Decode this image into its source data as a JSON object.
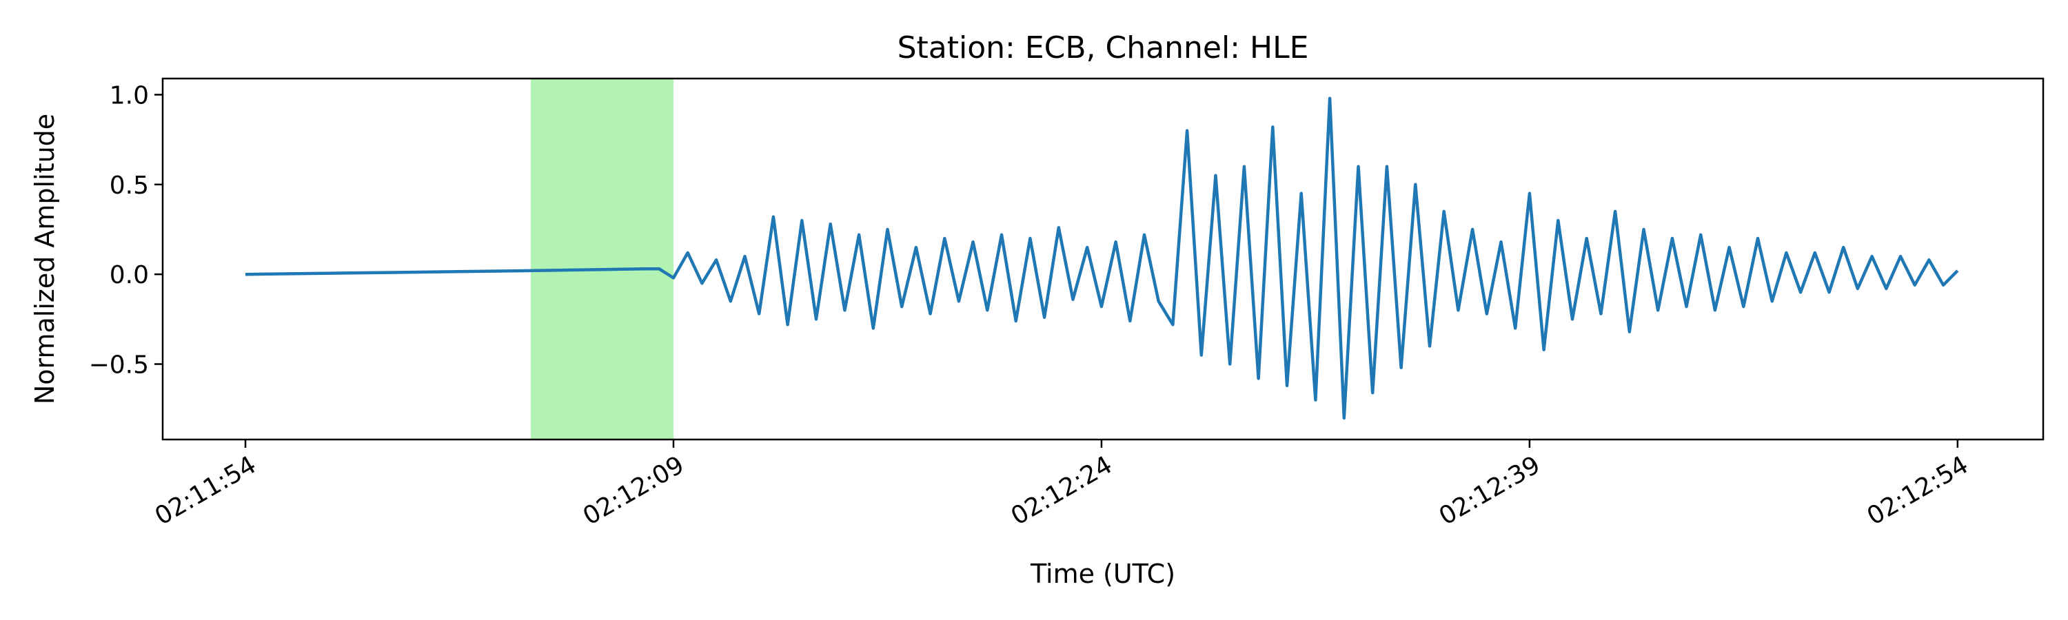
{
  "chart_data": {
    "type": "line",
    "title": "Station: ECB, Channel: HLE",
    "xlabel": "Time (UTC)",
    "ylabel": "Normalized Amplitude",
    "x_range_seconds_since_start": [
      -2.9,
      63.0
    ],
    "ylim": [
      -0.92,
      1.09
    ],
    "x_ticks": [
      "02:11:54",
      "02:12:09",
      "02:12:24",
      "02:12:39",
      "02:12:54"
    ],
    "y_ticks": [
      "−0.5",
      "0.0",
      "0.5",
      "1.0"
    ],
    "y_tick_values": [
      -0.5,
      0.0,
      0.5,
      1.0
    ],
    "grid": false,
    "legend": "none",
    "highlight_window": {
      "start": "02:12:04",
      "end": "02:12:09",
      "color": "#b2f2b2"
    },
    "series": [
      {
        "color": "#1f77b4",
        "t": [
          0,
          5,
          10,
          14.0,
          14.5,
          15.0,
          15.5,
          16.0,
          16.5,
          17.0,
          17.5,
          18.0,
          18.5,
          19.0,
          19.5,
          20.0,
          20.5,
          21.0,
          21.5,
          22.0,
          22.5,
          23.0,
          23.5,
          24.0,
          24.5,
          25.0,
          25.5,
          26.0,
          26.5,
          27.0,
          27.5,
          28.0,
          28.5,
          29.0,
          29.5,
          30.0,
          30.5,
          31.0,
          31.5,
          32.0,
          32.5,
          33.0,
          33.5,
          34.0,
          34.5,
          35.0,
          35.5,
          36.0,
          36.5,
          37.0,
          37.5,
          38.0,
          38.5,
          39.0,
          39.5,
          40.0,
          40.5,
          41.0,
          41.5,
          42.0,
          42.5,
          43.0,
          43.5,
          44.0,
          44.5,
          45.0,
          45.5,
          46.0,
          46.5,
          47.0,
          47.5,
          48.0,
          48.5,
          49.0,
          49.5,
          50.0,
          50.5,
          51.0,
          51.5,
          52.0,
          52.5,
          53.0,
          53.5,
          54.0,
          54.5,
          55.0,
          55.5,
          56.0,
          56.5,
          57.0,
          57.5,
          58.0,
          58.5,
          59.0,
          59.5,
          60.0
        ],
        "values": [
          0.0,
          0.01,
          0.02,
          0.03,
          0.03,
          -0.02,
          0.12,
          -0.05,
          0.08,
          -0.15,
          0.1,
          -0.22,
          0.32,
          -0.28,
          0.3,
          -0.25,
          0.28,
          -0.2,
          0.22,
          -0.3,
          0.25,
          -0.18,
          0.15,
          -0.22,
          0.2,
          -0.15,
          0.18,
          -0.2,
          0.22,
          -0.26,
          0.2,
          -0.24,
          0.26,
          -0.14,
          0.15,
          -0.18,
          0.18,
          -0.26,
          0.22,
          -0.15,
          -0.28,
          0.8,
          -0.45,
          0.55,
          -0.5,
          0.6,
          -0.58,
          0.82,
          -0.62,
          0.45,
          -0.7,
          0.98,
          -0.8,
          0.6,
          -0.66,
          0.6,
          -0.52,
          0.5,
          -0.4,
          0.35,
          -0.2,
          0.25,
          -0.22,
          0.18,
          -0.3,
          0.45,
          -0.42,
          0.3,
          -0.25,
          0.2,
          -0.22,
          0.35,
          -0.32,
          0.25,
          -0.2,
          0.2,
          -0.18,
          0.22,
          -0.2,
          0.15,
          -0.18,
          0.2,
          -0.15,
          0.12,
          -0.1,
          0.12,
          -0.1,
          0.15,
          -0.08,
          0.1,
          -0.08,
          0.1,
          -0.06,
          0.08,
          -0.06,
          0.02
        ]
      }
    ]
  }
}
